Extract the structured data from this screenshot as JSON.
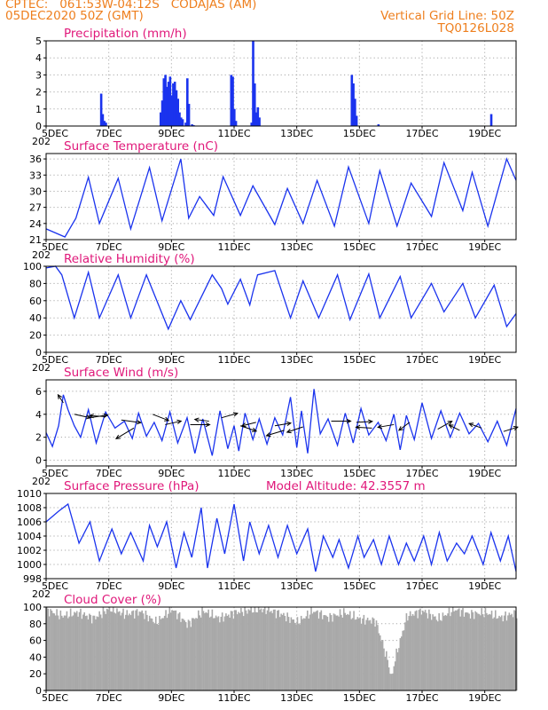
{
  "header": {
    "line1": "CPTEC:   061:53W-04:12S   CODAJAS (AM)",
    "line2": "05DEC2020 50Z (GMT)",
    "right1": "Vertical Grid Line: 50Z",
    "right2": "TQ0126L028"
  },
  "colors": {
    "header": "#ee7f1e",
    "title": "#e0187a",
    "series": "#1a33ee",
    "cloud": "#a9a9a9",
    "grid": "#a8a8a8"
  },
  "x_axis": {
    "tick_labels": [
      "5DEC",
      "7DEC",
      "9DEC",
      "11DEC",
      "13DEC",
      "15DEC",
      "17DEC",
      "19DEC"
    ],
    "tick_days": [
      5,
      7,
      9,
      11,
      13,
      15,
      17,
      19
    ],
    "range_days": [
      5,
      20
    ],
    "year_fragment": "202"
  },
  "panels": [
    {
      "id": "precip",
      "title": "Precipitation (mm/h)",
      "yticks": [
        "0",
        "1",
        "2",
        "3",
        "4",
        "5"
      ],
      "ylim": [
        0,
        5
      ]
    },
    {
      "id": "temp",
      "title": "Surface Temperature (nC)",
      "yticks": [
        "21",
        "24",
        "27",
        "30",
        "33",
        "36"
      ],
      "ylim": [
        21,
        37
      ]
    },
    {
      "id": "rh",
      "title": "Relative Humidity (%)",
      "yticks": [
        "0",
        "20",
        "40",
        "60",
        "80",
        "100"
      ],
      "ylim": [
        0,
        100
      ]
    },
    {
      "id": "wind",
      "title": "Surface Wind (m/s)",
      "yticks": [
        "0",
        "2",
        "4",
        "6"
      ],
      "ylim": [
        -0.5,
        7
      ]
    },
    {
      "id": "pres",
      "title": "Surface Pressure (hPa)",
      "extra": "Model Altitude: 42.3557 m",
      "yticks": [
        "998",
        "1000",
        "1002",
        "1004",
        "1006",
        "1008",
        "1010"
      ],
      "ylim": [
        998,
        1010
      ]
    },
    {
      "id": "cloud",
      "title": "Cloud Cover (%)",
      "yticks": [
        "0",
        "20",
        "40",
        "60",
        "80",
        "100"
      ],
      "ylim": [
        0,
        100
      ]
    }
  ],
  "chart_data": [
    {
      "type": "bar",
      "id": "precip",
      "title": "Precipitation (mm/h)",
      "ylim": [
        0,
        5
      ],
      "x_days": [
        6.75,
        6.8,
        6.85,
        6.9,
        8.65,
        8.7,
        8.75,
        8.8,
        8.85,
        8.9,
        8.95,
        9.0,
        9.05,
        9.1,
        9.15,
        9.2,
        9.25,
        9.3,
        9.35,
        9.45,
        9.5,
        9.55,
        9.65,
        9.7,
        10.9,
        10.95,
        11.0,
        11.05,
        11.55,
        11.6,
        11.65,
        11.7,
        11.75,
        11.8,
        14.75,
        14.8,
        14.85,
        14.9,
        15.6,
        19.2
      ],
      "values": [
        1.9,
        0.7,
        0.3,
        0.2,
        0.8,
        1.5,
        2.8,
        3.0,
        2.3,
        2.6,
        2.9,
        1.8,
        2.5,
        2.6,
        2.1,
        1.6,
        0.8,
        0.5,
        0.4,
        0.2,
        2.8,
        1.3,
        0.1,
        0.05,
        3.0,
        2.9,
        1.0,
        0.3,
        0.2,
        5.0,
        2.5,
        0.8,
        1.1,
        0.5,
        3.0,
        2.5,
        1.6,
        0.6,
        0.1,
        0.7
      ]
    },
    {
      "type": "line",
      "id": "temp",
      "title": "Surface Temperature (nC)",
      "ylim": [
        21,
        37
      ],
      "x_days": [
        5.0,
        5.6,
        5.95,
        6.35,
        6.7,
        7.3,
        7.7,
        8.3,
        8.7,
        9.3,
        9.55,
        9.9,
        10.35,
        10.65,
        11.2,
        11.6,
        12.3,
        12.7,
        13.2,
        13.65,
        14.2,
        14.65,
        15.3,
        15.65,
        16.2,
        16.65,
        17.3,
        17.7,
        18.3,
        18.6,
        19.1,
        19.7,
        20.0
      ],
      "values": [
        23,
        21.5,
        25,
        32.6,
        24,
        32.4,
        23,
        34.4,
        24.5,
        36,
        25,
        29,
        25.5,
        32.7,
        25.5,
        31,
        23.8,
        30.5,
        24,
        32,
        23.5,
        34.5,
        24,
        33.8,
        23.5,
        31.5,
        25.3,
        35.3,
        26.4,
        33.5,
        23.5,
        36,
        32
      ]
    },
    {
      "type": "line",
      "id": "rh",
      "title": "Relative Humidity (%)",
      "ylim": [
        0,
        100
      ],
      "x_days": [
        5.0,
        5.3,
        5.5,
        5.9,
        6.35,
        6.7,
        7.3,
        7.7,
        8.2,
        8.9,
        9.3,
        9.6,
        10.3,
        10.6,
        10.8,
        11.2,
        11.5,
        11.6,
        11.75,
        12.3,
        12.8,
        13.2,
        13.7,
        14.3,
        14.7,
        15.3,
        15.65,
        16.3,
        16.65,
        17.3,
        17.7,
        18.3,
        18.7,
        19.3,
        19.7,
        20.0
      ],
      "values": [
        98,
        100,
        90,
        40,
        93,
        40,
        90,
        40,
        90,
        27,
        60,
        38,
        90,
        74,
        56,
        85,
        55,
        70,
        90,
        95,
        40,
        83,
        40,
        90,
        38,
        91,
        40,
        88,
        40,
        80,
        47,
        80,
        40,
        78,
        30,
        45
      ]
    },
    {
      "type": "line",
      "id": "wind",
      "title": "Surface Wind (m/s)",
      "ylim": [
        -0.5,
        7
      ],
      "x_days": [
        5.0,
        5.2,
        5.4,
        5.55,
        5.7,
        5.9,
        6.1,
        6.35,
        6.6,
        6.9,
        7.2,
        7.5,
        7.75,
        7.95,
        8.2,
        8.45,
        8.7,
        8.95,
        9.2,
        9.5,
        9.75,
        10.0,
        10.3,
        10.55,
        10.8,
        11.0,
        11.15,
        11.35,
        11.6,
        11.8,
        12.05,
        12.3,
        12.55,
        12.8,
        13.0,
        13.15,
        13.35,
        13.55,
        13.75,
        14.0,
        14.3,
        14.55,
        14.8,
        15.05,
        15.3,
        15.6,
        15.85,
        16.1,
        16.3,
        16.5,
        16.75,
        17.0,
        17.3,
        17.6,
        17.9,
        18.2,
        18.5,
        18.8,
        19.1,
        19.4,
        19.7,
        20.0
      ],
      "values": [
        2.4,
        1.2,
        3.0,
        5.7,
        4.4,
        3.0,
        2.0,
        4.4,
        1.5,
        4.2,
        2.8,
        3.4,
        1.9,
        4.1,
        2.1,
        3.3,
        1.7,
        4.2,
        1.5,
        3.7,
        0.6,
        3.6,
        0.4,
        4.3,
        1.0,
        3.0,
        0.8,
        4.1,
        1.8,
        3.6,
        1.4,
        3.7,
        2.2,
        5.5,
        1.1,
        4.3,
        0.6,
        6.2,
        2.3,
        3.6,
        1.3,
        4.1,
        1.5,
        4.5,
        2.2,
        3.3,
        1.7,
        4.0,
        0.9,
        3.9,
        1.8,
        5.0,
        1.9,
        4.3,
        2.0,
        4.1,
        2.3,
        3.2,
        1.6,
        3.4,
        1.3,
        4.5
      ]
    },
    {
      "type": "line",
      "id": "pres",
      "title": "Surface Pressure (hPa)",
      "ylim": [
        998,
        1010
      ],
      "x_days": [
        5.0,
        5.4,
        5.7,
        6.05,
        6.4,
        6.7,
        7.1,
        7.4,
        7.7,
        8.1,
        8.3,
        8.55,
        8.85,
        9.15,
        9.4,
        9.65,
        9.95,
        10.15,
        10.45,
        10.7,
        11.0,
        11.3,
        11.5,
        11.8,
        12.1,
        12.4,
        12.7,
        13.0,
        13.35,
        13.6,
        13.85,
        14.15,
        14.35,
        14.65,
        14.95,
        15.15,
        15.45,
        15.7,
        15.95,
        16.25,
        16.5,
        16.75,
        17.05,
        17.3,
        17.55,
        17.8,
        18.1,
        18.35,
        18.6,
        18.95,
        19.2,
        19.5,
        19.75,
        20.0
      ],
      "values": [
        1006,
        1007.5,
        1008.5,
        1003,
        1006,
        1000.5,
        1005,
        1001.5,
        1004.5,
        1000.5,
        1005.5,
        1002.5,
        1006,
        999.5,
        1004.5,
        1001,
        1008,
        999.5,
        1006.5,
        1001.5,
        1008.5,
        1000.5,
        1006,
        1001.5,
        1005.5,
        1001,
        1005.5,
        1001.5,
        1005,
        999,
        1004,
        1001,
        1003.5,
        999.5,
        1004,
        1001,
        1003.5,
        1000,
        1004,
        1000,
        1003,
        1000.5,
        1004,
        1000,
        1004.5,
        1000.5,
        1003,
        1001.5,
        1004,
        1000,
        1004.5,
        1000.5,
        1004,
        999
      ]
    },
    {
      "type": "bar",
      "id": "cloud",
      "title": "Cloud Cover (%)",
      "ylim": [
        0,
        100
      ],
      "x_days": [
        5.0,
        5.5,
        6.0,
        6.5,
        7.0,
        7.5,
        8.0,
        8.5,
        9.0,
        9.5,
        10.0,
        10.5,
        11.0,
        11.5,
        12.0,
        12.5,
        13.0,
        13.5,
        14.0,
        14.5,
        15.0,
        15.5,
        16.0,
        16.5,
        17.0,
        17.5,
        18.0,
        18.5,
        19.0,
        19.5,
        20.0
      ],
      "values": [
        95,
        88,
        92,
        85,
        97,
        90,
        93,
        80,
        96,
        78,
        94,
        85,
        92,
        95,
        96,
        90,
        80,
        94,
        86,
        92,
        84,
        82,
        20,
        88,
        94,
        84,
        96,
        90,
        92,
        86,
        92
      ]
    }
  ]
}
